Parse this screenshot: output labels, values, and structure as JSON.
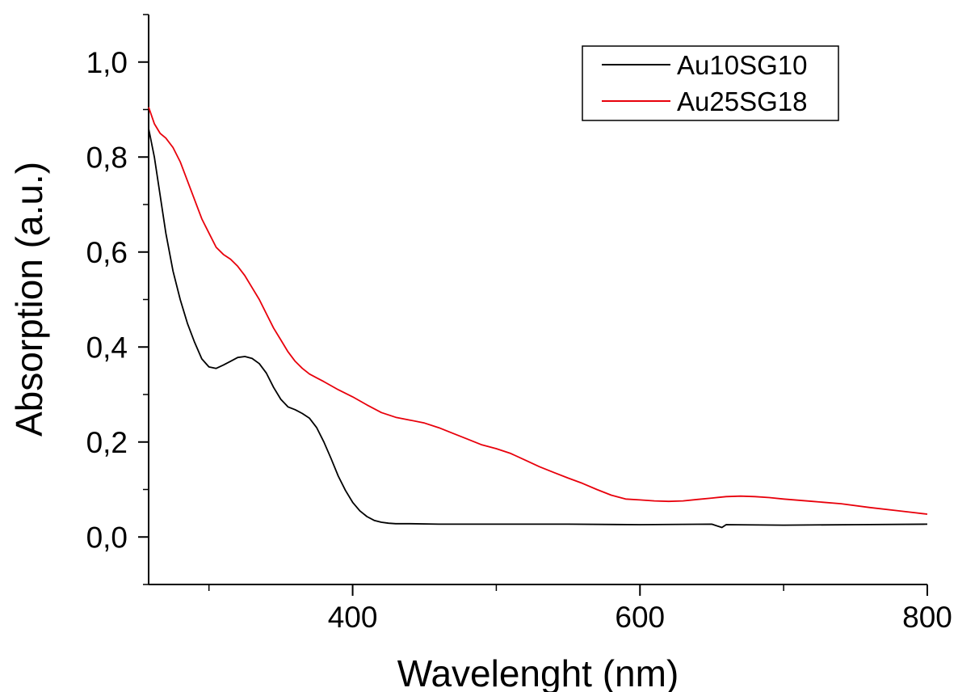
{
  "chart_data": {
    "type": "line",
    "title": "",
    "xlabel": "Wavelenght (nm)",
    "ylabel": "Absorption (a.u.)",
    "xlim": [
      258,
      800
    ],
    "ylim": [
      -0.1,
      1.1
    ],
    "x_ticks": [
      {
        "value": 400,
        "label": "400"
      },
      {
        "value": 600,
        "label": "600"
      },
      {
        "value": 800,
        "label": "800"
      }
    ],
    "x_minor_ticks": [
      300,
      500,
      700
    ],
    "y_ticks": [
      {
        "value": 0.0,
        "label": "0,0"
      },
      {
        "value": 0.2,
        "label": "0,2"
      },
      {
        "value": 0.4,
        "label": "0,4"
      },
      {
        "value": 0.6,
        "label": "0,6"
      },
      {
        "value": 0.8,
        "label": "0,8"
      },
      {
        "value": 1.0,
        "label": "1,0"
      }
    ],
    "y_minor_ticks": [
      -0.1,
      0.1,
      0.3,
      0.5,
      0.7,
      0.9,
      1.1
    ],
    "grid": false,
    "legend": "top-right",
    "series": [
      {
        "name": "Au10SG10",
        "color": "#000000",
        "x": [
          258,
          262,
          266,
          270,
          275,
          280,
          285,
          290,
          295,
          300,
          305,
          310,
          315,
          320,
          325,
          330,
          335,
          340,
          345,
          350,
          355,
          360,
          365,
          370,
          375,
          380,
          385,
          390,
          395,
          400,
          405,
          410,
          415,
          420,
          425,
          430,
          440,
          460,
          500,
          550,
          600,
          650,
          657,
          660,
          700,
          750,
          800
        ],
        "y": [
          0.86,
          0.8,
          0.72,
          0.64,
          0.56,
          0.5,
          0.45,
          0.41,
          0.375,
          0.358,
          0.355,
          0.362,
          0.37,
          0.378,
          0.38,
          0.376,
          0.365,
          0.345,
          0.315,
          0.29,
          0.274,
          0.268,
          0.26,
          0.25,
          0.23,
          0.2,
          0.165,
          0.128,
          0.098,
          0.073,
          0.055,
          0.043,
          0.035,
          0.031,
          0.029,
          0.028,
          0.028,
          0.027,
          0.027,
          0.027,
          0.026,
          0.027,
          0.02,
          0.026,
          0.025,
          0.026,
          0.027
        ]
      },
      {
        "name": "Au25SG18",
        "color": "#e8000b",
        "x": [
          258,
          262,
          266,
          270,
          275,
          280,
          285,
          290,
          295,
          300,
          305,
          310,
          315,
          320,
          325,
          330,
          335,
          340,
          345,
          350,
          355,
          360,
          365,
          370,
          375,
          380,
          390,
          400,
          410,
          420,
          430,
          440,
          450,
          460,
          470,
          480,
          490,
          500,
          510,
          520,
          530,
          540,
          550,
          560,
          570,
          580,
          590,
          600,
          610,
          620,
          630,
          640,
          650,
          660,
          670,
          680,
          690,
          700,
          720,
          740,
          760,
          780,
          800
        ],
        "y": [
          0.905,
          0.87,
          0.85,
          0.84,
          0.82,
          0.79,
          0.75,
          0.71,
          0.67,
          0.64,
          0.61,
          0.595,
          0.585,
          0.57,
          0.55,
          0.525,
          0.5,
          0.47,
          0.44,
          0.415,
          0.39,
          0.37,
          0.355,
          0.343,
          0.335,
          0.327,
          0.31,
          0.295,
          0.278,
          0.262,
          0.252,
          0.246,
          0.24,
          0.23,
          0.218,
          0.206,
          0.194,
          0.186,
          0.176,
          0.162,
          0.148,
          0.136,
          0.124,
          0.113,
          0.1,
          0.088,
          0.08,
          0.078,
          0.076,
          0.075,
          0.076,
          0.079,
          0.082,
          0.085,
          0.086,
          0.085,
          0.083,
          0.08,
          0.075,
          0.07,
          0.062,
          0.055,
          0.048
        ]
      }
    ]
  }
}
